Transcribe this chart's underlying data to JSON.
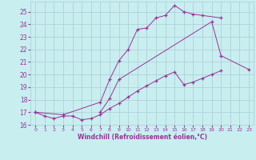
{
  "background_color": "#c8eef0",
  "grid_color": "#aaccd4",
  "line_color": "#993399",
  "xlabel": "Windchill (Refroidissement éolien,°C)",
  "xlim": [
    -0.5,
    23.5
  ],
  "ylim": [
    16,
    25.8
  ],
  "yticks": [
    16,
    17,
    18,
    19,
    20,
    21,
    22,
    23,
    24,
    25
  ],
  "xticks": [
    0,
    1,
    2,
    3,
    4,
    5,
    6,
    7,
    8,
    9,
    10,
    11,
    12,
    13,
    14,
    15,
    16,
    17,
    18,
    19,
    20,
    21,
    22,
    23
  ],
  "line1_x": [
    0,
    1,
    2,
    3,
    4,
    5,
    6,
    7,
    8,
    9,
    10,
    11,
    12,
    13,
    14,
    15,
    16,
    17,
    18,
    19,
    20
  ],
  "line1_y": [
    17.0,
    16.7,
    16.5,
    16.7,
    16.7,
    16.4,
    16.5,
    16.8,
    17.3,
    17.7,
    18.2,
    18.7,
    19.1,
    19.5,
    19.9,
    20.2,
    19.2,
    19.4,
    19.7,
    20.0,
    20.3
  ],
  "line2_x": [
    0,
    3,
    7,
    8,
    9,
    10,
    11,
    12,
    13,
    14,
    15,
    16,
    17,
    18,
    20
  ],
  "line2_y": [
    17.0,
    16.8,
    17.8,
    19.6,
    21.1,
    22.0,
    23.6,
    23.7,
    24.5,
    24.7,
    25.5,
    25.0,
    24.8,
    24.7,
    24.5
  ],
  "line3_x": [
    7,
    8,
    9,
    19,
    20,
    23
  ],
  "line3_y": [
    17.0,
    18.1,
    19.6,
    24.2,
    21.5,
    20.4
  ]
}
